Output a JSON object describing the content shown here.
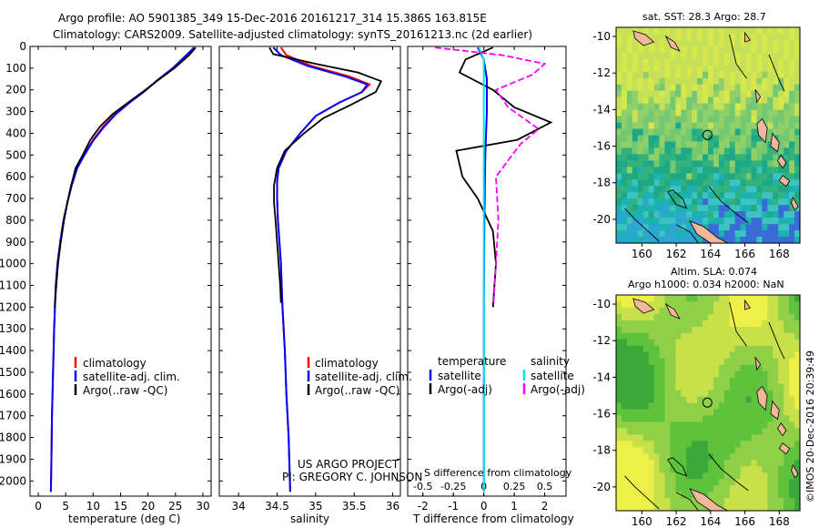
{
  "header": {
    "line1": "Argo profile: AO 5901385_349 15-Dec-2016 20161217_314 15.386S 163.815E",
    "line2": "Climatology: CARS2009. Satellite-adjusted climatology: synTS_20161213.nc (2d earlier)"
  },
  "colors": {
    "climatology": "#ff0000",
    "satellite": "#0000ff",
    "argo": "#000000",
    "salinity_satellite": "#00e5e5",
    "salinity_argo": "#ff00ff",
    "land": "#f2b79a"
  },
  "depth_axis": {
    "ticks": [
      "0",
      "100",
      "200",
      "300",
      "400",
      "500",
      "600",
      "700",
      "800",
      "900",
      "1000",
      "1100",
      "1200",
      "1300",
      "1400",
      "1500",
      "1600",
      "1700",
      "1800",
      "1900",
      "2000"
    ],
    "ylim": [
      0,
      2070
    ],
    "inverted": true
  },
  "panels": {
    "temperature": {
      "xlabel": "temperature (deg C)",
      "xticks": [
        "0",
        "5",
        "10",
        "15",
        "20",
        "25",
        "30"
      ],
      "xlim": [
        -1.5,
        31.5
      ],
      "legend": [
        "climatology",
        "satellite-adj. clim.",
        "Argo(..raw -QC)"
      ]
    },
    "salinity": {
      "xlabel": "salinity",
      "xticks": [
        "34",
        "34.5",
        "35",
        "35.5",
        "36"
      ],
      "xlim": [
        33.75,
        36.1
      ],
      "legend": [
        "climatology",
        "satellite-adj. clim.",
        "Argo(..raw -QC)"
      ],
      "credit_line1": "US ARGO PROJECT",
      "credit_line2": "PI: GREGORY C. JOHNSON"
    },
    "difference": {
      "xlabel_top": "S difference from climatology",
      "xlabel_bottom": "T difference from climatology",
      "xticks": [
        "-2",
        "-1",
        "0",
        "1",
        "2"
      ],
      "xticks_s": [
        "-0.5",
        "-0.25",
        "0",
        "0.25",
        "0.5"
      ],
      "xlim": [
        -2.5,
        2.7
      ],
      "legend_temperature_title": "temperature",
      "legend_salinity_title": "salinity",
      "legend_temperature": [
        "satellite",
        "Argo(-adj)"
      ],
      "legend_salinity": [
        "satellite",
        "Argo(-adj)"
      ]
    }
  },
  "maps": {
    "sst": {
      "title": "sat. SST: 28.3  Argo: 28.7"
    },
    "sla": {
      "title_line1": "Altim. SLA: 0.074",
      "title_line2": "Argo h1000: 0.034  h2000: NaN"
    },
    "xticks": [
      "160",
      "162",
      "164",
      "166",
      "168"
    ],
    "yticks": [
      "-10",
      "-12",
      "-14",
      "-16",
      "-18",
      "-20"
    ],
    "lon_range": [
      158.5,
      169.2
    ],
    "lat_range": [
      -21.3,
      -9.5
    ],
    "float_position": {
      "lon": 163.815,
      "lat": -15.386
    }
  },
  "watermark": "©IMOS 20-Dec-2016 20:39:49",
  "chart_data": [
    {
      "type": "line",
      "title": "",
      "xlabel": "temperature (deg C)",
      "ylabel": "",
      "ylim": [
        0,
        2070
      ],
      "series": [
        {
          "name": "climatology",
          "points": [
            [
              28.6,
              5
            ],
            [
              27.2,
              40
            ],
            [
              24.5,
              100
            ],
            [
              21.5,
              160
            ],
            [
              19.2,
              210
            ],
            [
              16.5,
              260
            ],
            [
              14.0,
              310
            ],
            [
              11.8,
              370
            ],
            [
              10.0,
              430
            ],
            [
              8.3,
              500
            ],
            [
              7.0,
              560
            ],
            [
              6.0,
              640
            ],
            [
              5.3,
              720
            ],
            [
              4.6,
              800
            ],
            [
              4.0,
              900
            ],
            [
              3.5,
              1000
            ],
            [
              3.2,
              1100
            ],
            [
              2.9,
              1300
            ],
            [
              2.7,
              1500
            ],
            [
              2.5,
              1700
            ],
            [
              2.4,
              1900
            ],
            [
              2.3,
              2050
            ]
          ]
        },
        {
          "name": "satellite-adj. clim.",
          "points": [
            [
              28.4,
              5
            ],
            [
              27.0,
              40
            ],
            [
              24.5,
              100
            ],
            [
              21.5,
              160
            ],
            [
              19.2,
              210
            ],
            [
              16.6,
              260
            ],
            [
              14.2,
              310
            ],
            [
              12.0,
              370
            ],
            [
              10.1,
              430
            ],
            [
              8.4,
              500
            ],
            [
              7.1,
              560
            ],
            [
              6.1,
              640
            ],
            [
              5.3,
              720
            ],
            [
              4.6,
              800
            ],
            [
              4.0,
              900
            ],
            [
              3.5,
              1000
            ],
            [
              3.2,
              1100
            ],
            [
              2.9,
              1300
            ],
            [
              2.7,
              1500
            ],
            [
              2.5,
              1700
            ],
            [
              2.4,
              1900
            ],
            [
              2.3,
              2050
            ]
          ]
        },
        {
          "name": "Argo(..raw -QC)",
          "points": [
            [
              28.7,
              5
            ],
            [
              27.5,
              40
            ],
            [
              24.8,
              100
            ],
            [
              21.6,
              160
            ],
            [
              19.0,
              210
            ],
            [
              16.3,
              260
            ],
            [
              13.6,
              310
            ],
            [
              11.2,
              370
            ],
            [
              9.5,
              430
            ],
            [
              8.1,
              500
            ],
            [
              6.8,
              560
            ],
            [
              6.0,
              640
            ],
            [
              5.3,
              720
            ],
            [
              4.7,
              800
            ],
            [
              4.1,
              900
            ],
            [
              3.6,
              1000
            ],
            [
              3.3,
              1100
            ],
            [
              3.0,
              1200
            ]
          ]
        }
      ]
    },
    {
      "type": "line",
      "title": "",
      "xlabel": "salinity",
      "ylabel": "",
      "ylim": [
        0,
        2070
      ],
      "series": [
        {
          "name": "climatology",
          "points": [
            [
              34.55,
              5
            ],
            [
              34.62,
              40
            ],
            [
              34.95,
              90
            ],
            [
              35.45,
              140
            ],
            [
              35.7,
              175
            ],
            [
              35.6,
              210
            ],
            [
              35.3,
              260
            ],
            [
              35.0,
              320
            ],
            [
              34.8,
              400
            ],
            [
              34.62,
              480
            ],
            [
              34.52,
              560
            ],
            [
              34.5,
              620
            ],
            [
              34.5,
              700
            ],
            [
              34.51,
              800
            ],
            [
              34.53,
              900
            ],
            [
              34.55,
              1000
            ],
            [
              34.57,
              1200
            ],
            [
              34.6,
              1400
            ],
            [
              34.62,
              1600
            ],
            [
              34.65,
              1800
            ],
            [
              34.67,
              2050
            ]
          ]
        },
        {
          "name": "satellite-adj. clim.",
          "points": [
            [
              34.45,
              5
            ],
            [
              34.55,
              40
            ],
            [
              34.9,
              90
            ],
            [
              35.4,
              140
            ],
            [
              35.67,
              175
            ],
            [
              35.6,
              210
            ],
            [
              35.3,
              260
            ],
            [
              35.0,
              320
            ],
            [
              34.8,
              400
            ],
            [
              34.62,
              480
            ],
            [
              34.52,
              560
            ],
            [
              34.5,
              620
            ],
            [
              34.5,
              700
            ],
            [
              34.51,
              800
            ],
            [
              34.53,
              900
            ],
            [
              34.55,
              1000
            ],
            [
              34.57,
              1200
            ],
            [
              34.6,
              1400
            ],
            [
              34.62,
              1600
            ],
            [
              34.65,
              1800
            ],
            [
              34.67,
              2050
            ]
          ]
        },
        {
          "name": "Argo(..raw -QC)",
          "points": [
            [
              34.4,
              5
            ],
            [
              34.45,
              35
            ],
            [
              35.0,
              80
            ],
            [
              35.55,
              120
            ],
            [
              35.85,
              160
            ],
            [
              35.78,
              210
            ],
            [
              35.45,
              270
            ],
            [
              35.1,
              330
            ],
            [
              34.85,
              400
            ],
            [
              34.6,
              480
            ],
            [
              34.5,
              560
            ],
            [
              34.46,
              640
            ],
            [
              34.46,
              720
            ],
            [
              34.48,
              800
            ],
            [
              34.5,
              900
            ],
            [
              34.52,
              1000
            ],
            [
              34.54,
              1100
            ],
            [
              34.55,
              1180
            ]
          ]
        }
      ]
    },
    {
      "type": "line",
      "title": "",
      "xlabel": "T difference from climatology",
      "ylabel": "",
      "ylim": [
        0,
        2070
      ],
      "series": [
        {
          "name": "temperature satellite",
          "points": [
            [
              -0.2,
              5
            ],
            [
              0.0,
              60
            ],
            [
              0.1,
              150
            ],
            [
              0.1,
              300
            ],
            [
              0.05,
              500
            ],
            [
              0.02,
              800
            ],
            [
              0.0,
              1200
            ],
            [
              0.0,
              2050
            ]
          ]
        },
        {
          "name": "temperature Argo(-adj)",
          "points": [
            [
              0.3,
              5
            ],
            [
              -0.6,
              60
            ],
            [
              -0.8,
              120
            ],
            [
              0.3,
              200
            ],
            [
              1.0,
              280
            ],
            [
              2.2,
              350
            ],
            [
              1.1,
              430
            ],
            [
              -0.9,
              480
            ],
            [
              -0.7,
              600
            ],
            [
              -0.2,
              700
            ],
            [
              0.3,
              850
            ],
            [
              0.4,
              1000
            ],
            [
              0.3,
              1200
            ]
          ]
        },
        {
          "name": "salinity satellite",
          "points": [
            [
              -0.04,
              5
            ],
            [
              0.0,
              60
            ],
            [
              0.0,
              200
            ],
            [
              0.0,
              500
            ],
            [
              0.0,
              2050
            ]
          ]
        },
        {
          "name": "salinity Argo(-adj)",
          "points": [
            [
              -0.4,
              5
            ],
            [
              0.15,
              40
            ],
            [
              0.5,
              80
            ],
            [
              0.4,
              130
            ],
            [
              0.1,
              200
            ],
            [
              0.2,
              280
            ],
            [
              0.45,
              380
            ],
            [
              0.3,
              450
            ],
            [
              0.1,
              600
            ],
            [
              0.12,
              800
            ],
            [
              0.1,
              1000
            ],
            [
              0.08,
              1180
            ]
          ]
        }
      ]
    }
  ]
}
